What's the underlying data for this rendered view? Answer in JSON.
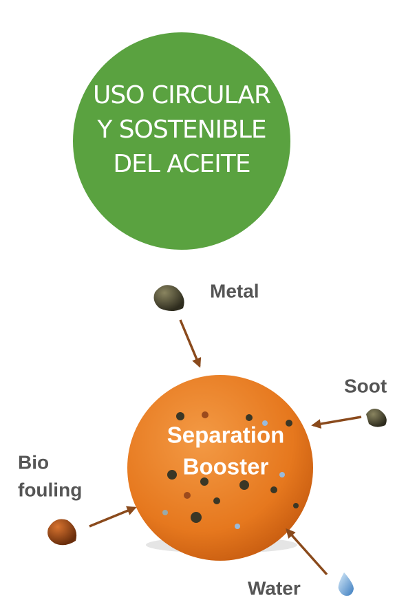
{
  "header": {
    "title_lines": [
      "USO CIRCULAR",
      "Y SOSTENIBLE",
      "DEL ACEITE"
    ]
  },
  "center": {
    "label_lines": [
      "Separation",
      "Booster"
    ]
  },
  "nodes": [
    {
      "label_lines": [
        "Metal"
      ]
    },
    {
      "label_lines": [
        "Soot"
      ]
    },
    {
      "label_lines": [
        "Bio",
        "fouling"
      ]
    },
    {
      "label_lines": [
        "Water"
      ]
    }
  ]
}
